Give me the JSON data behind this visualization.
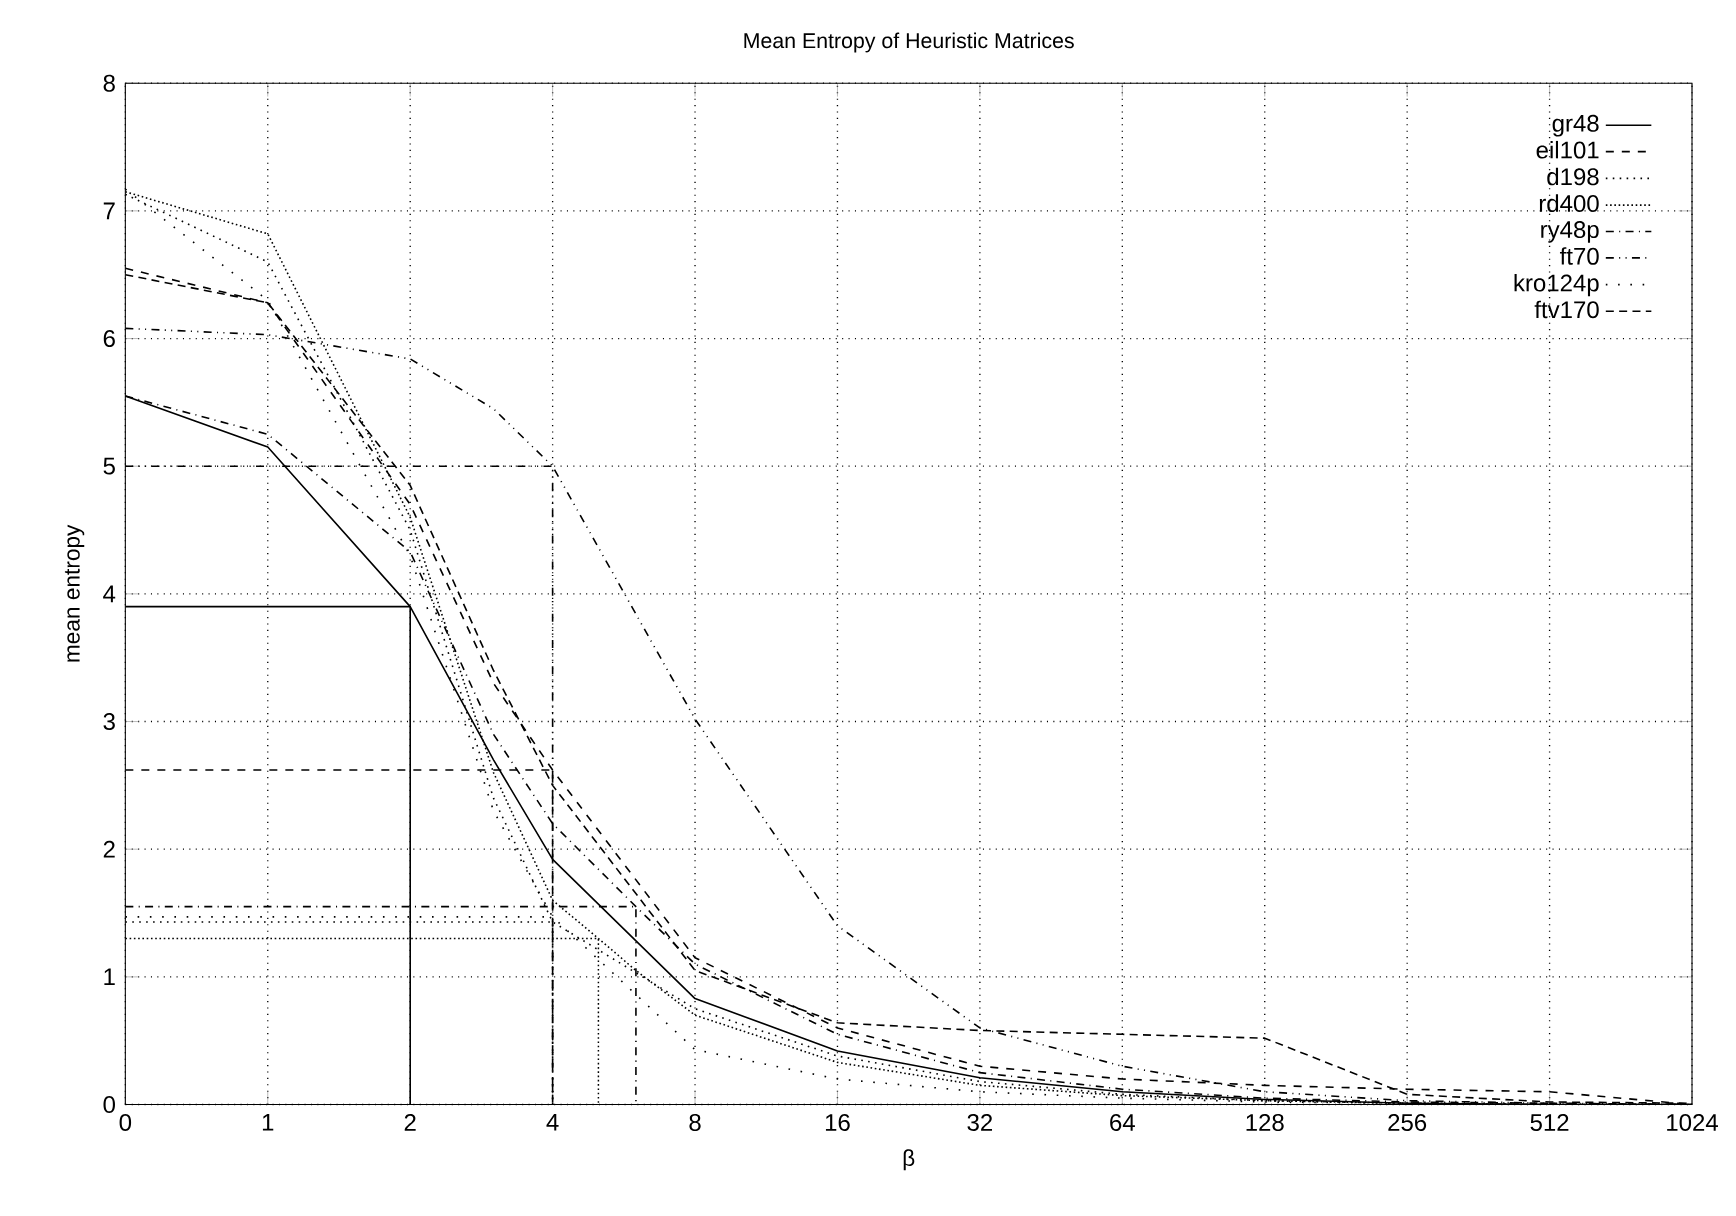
{
  "chart_data": {
    "type": "line",
    "title": "Mean Entropy of Heuristic Matrices",
    "xlabel": "β",
    "ylabel": "mean entropy",
    "log": "x",
    "xlim": [
      0.5,
      1024
    ],
    "ylim": [
      0,
      8
    ],
    "xticks": [
      {
        "value": 0.5,
        "label": "0"
      },
      1,
      2,
      4,
      8,
      16,
      32,
      64,
      128,
      256,
      512,
      1024
    ],
    "yticks": [
      0,
      1,
      2,
      3,
      4,
      5,
      6,
      7,
      8
    ],
    "grid": true,
    "legend": "top right",
    "marker": "none",
    "series": [
      {
        "name": "gr48",
        "color": "#000000",
        "line_style": "solid",
        "x": [
          0.5,
          1,
          2,
          3,
          4,
          8,
          16,
          32,
          64,
          128,
          256,
          512,
          1024
        ],
        "values": [
          5.55,
          5.15,
          3.9,
          2.7,
          1.92,
          0.83,
          0.42,
          0.21,
          0.1,
          0.04,
          0.01,
          0,
          0
        ]
      },
      {
        "name": "eil101",
        "color": "#000000",
        "line_style": "dashed",
        "x": [
          0.5,
          1,
          2,
          3,
          4,
          8,
          16,
          32,
          64,
          128,
          256,
          512,
          1024
        ],
        "values": [
          6.55,
          6.28,
          4.7,
          3.3,
          2.62,
          1.15,
          0.6,
          0.3,
          0.2,
          0.15,
          0.12,
          0.1,
          0
        ]
      },
      {
        "name": "d198",
        "color": "#000000",
        "line_style": "dotted",
        "x": [
          0.5,
          1,
          2,
          3,
          4,
          8,
          16,
          32,
          64,
          128,
          256,
          512,
          1024
        ],
        "values": [
          7.13,
          6.6,
          4.5,
          2.4,
          1.43,
          0.75,
          0.38,
          0.18,
          0.08,
          0.03,
          0.01,
          0,
          0
        ]
      },
      {
        "name": "rd400",
        "color": "#000000",
        "line_style": "densely dotted",
        "x": [
          0.5,
          1,
          2,
          3,
          4,
          5,
          6,
          8,
          16,
          32,
          64,
          128,
          256,
          512,
          1024
        ],
        "values": [
          7.15,
          6.82,
          4.6,
          2.6,
          1.6,
          1.3,
          1.05,
          0.7,
          0.33,
          0.15,
          0.07,
          0.03,
          0.01,
          0,
          0
        ]
      },
      {
        "name": "ry48p",
        "color": "#000000",
        "line_style": "dashdotted",
        "x": [
          0.5,
          1,
          2,
          3,
          4,
          6,
          8,
          16,
          32,
          64,
          128,
          256,
          512,
          1024
        ],
        "values": [
          5.55,
          5.25,
          4.33,
          2.9,
          2.2,
          1.55,
          1.1,
          0.55,
          0.25,
          0.12,
          0.05,
          0.02,
          0.01,
          0
        ]
      },
      {
        "name": "ft70",
        "color": "#000000",
        "line_style": "dashdotdotted",
        "x": [
          0.5,
          1,
          2,
          3,
          4,
          8,
          16,
          32,
          64,
          128,
          256,
          512,
          1024
        ],
        "values": [
          6.08,
          6.03,
          5.84,
          5.45,
          5.0,
          3.02,
          1.4,
          0.6,
          0.3,
          0.1,
          0.03,
          0.01,
          0
        ]
      },
      {
        "name": "kro124p",
        "color": "#000000",
        "line_style": "loosely dotted",
        "x": [
          0.5,
          1,
          2,
          3,
          4,
          8,
          16,
          32,
          64,
          128,
          256,
          512,
          1024
        ],
        "values": [
          7.17,
          6.3,
          4.3,
          2.3,
          1.47,
          0.43,
          0.2,
          0.1,
          0.05,
          0.02,
          0.01,
          0,
          0
        ]
      },
      {
        "name": "ftv170",
        "color": "#000000",
        "line_style": "densely dashed",
        "x": [
          0.5,
          1,
          2,
          3,
          4,
          8,
          16,
          32,
          64,
          128,
          256,
          512,
          1024
        ],
        "values": [
          6.5,
          6.28,
          4.85,
          3.4,
          2.5,
          1.05,
          0.64,
          0.58,
          0.55,
          0.52,
          0.08,
          0.02,
          0.01
        ]
      },
      {
        "color": "#000000",
        "line_style": "solid",
        "x": [
          0.5,
          2,
          2
        ],
        "values": [
          3.9,
          3.9,
          0
        ]
      },
      {
        "color": "#000000",
        "line_style": "dashed",
        "x": [
          0.5,
          4,
          4
        ],
        "values": [
          2.62,
          2.62,
          0
        ]
      },
      {
        "color": "#000000",
        "line_style": "dotted",
        "x": [
          0.5,
          4,
          4
        ],
        "values": [
          1.43,
          1.43,
          0
        ]
      },
      {
        "color": "#000000",
        "line_style": "densely dotted",
        "x": [
          0.5,
          5,
          5
        ],
        "values": [
          1.3,
          1.3,
          0
        ]
      },
      {
        "color": "#000000",
        "line_style": "dashdotted",
        "x": [
          0.5,
          6,
          6
        ],
        "values": [
          1.55,
          1.55,
          0
        ]
      },
      {
        "color": "#000000",
        "line_style": "dashdotdotted",
        "x": [
          0.5,
          4,
          4
        ],
        "values": [
          5.0,
          5.0,
          0
        ]
      },
      {
        "color": "#000000",
        "line_style": "loosely dotted",
        "x": [
          0.5,
          4,
          4
        ],
        "values": [
          1.47,
          1.47,
          0
        ]
      }
    ]
  }
}
